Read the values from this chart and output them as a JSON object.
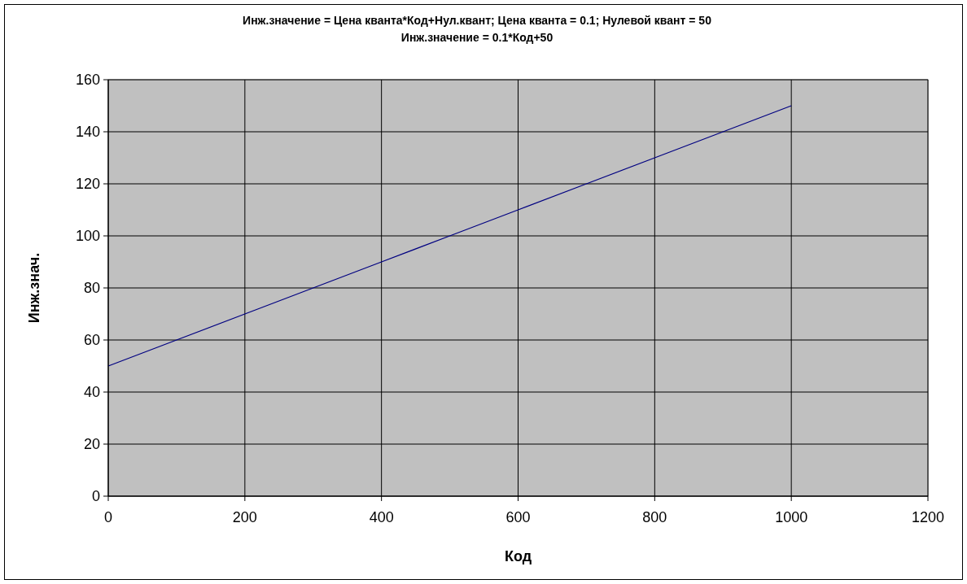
{
  "chart_data": {
    "type": "line",
    "title": "Инж.значение = Цена кванта*Код+Нул.квант; Цена кванта = 0.1; Нулевой квант = 50",
    "subtitle": "Инж.значение = 0.1*Код+50",
    "xlabel": "Код",
    "ylabel": "Инж.знач.",
    "x": [
      0,
      100,
      200,
      300,
      400,
      500,
      600,
      700,
      800,
      900,
      1000
    ],
    "series": [
      {
        "color": "#000080",
        "values": [
          50,
          60,
          70,
          80,
          90,
          100,
          110,
          120,
          130,
          140,
          150
        ]
      }
    ],
    "xlim": [
      0,
      1200
    ],
    "xticks": [
      0,
      200,
      400,
      600,
      800,
      1000,
      1200
    ],
    "ylim": [
      0,
      160
    ],
    "yticks": [
      0,
      20,
      40,
      60,
      80,
      100,
      120,
      140,
      160
    ],
    "grid": true,
    "marker": "none",
    "line_style": "solid"
  }
}
